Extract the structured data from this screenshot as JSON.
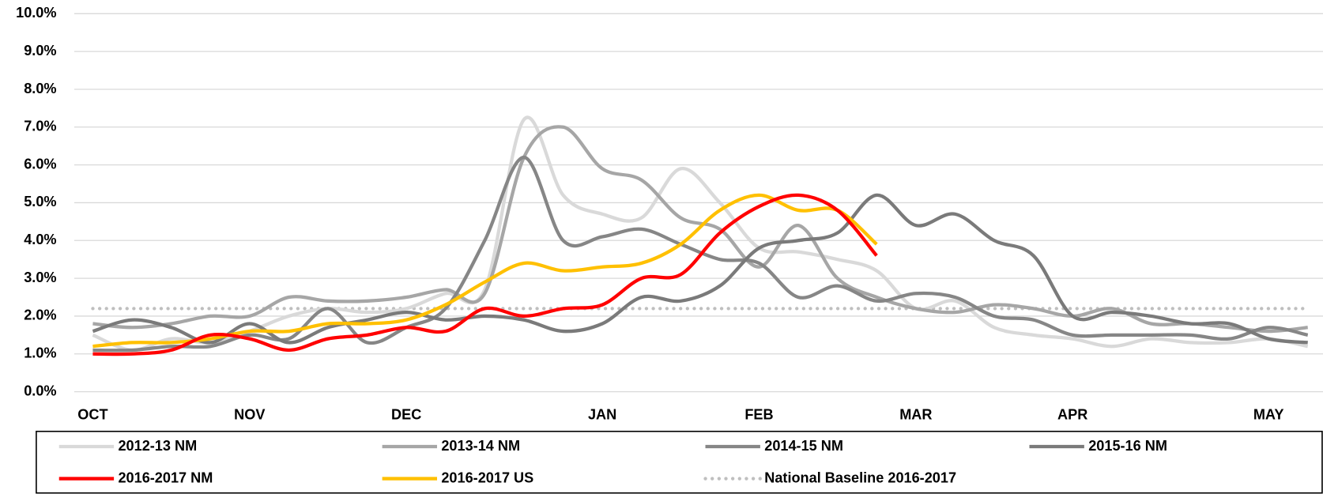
{
  "chart_data": {
    "type": "line",
    "categories": [
      "OCT",
      null,
      null,
      null,
      "NOV",
      null,
      null,
      null,
      "DEC",
      null,
      null,
      null,
      null,
      "JAN",
      null,
      null,
      null,
      "FEB",
      null,
      null,
      null,
      "MAR",
      null,
      null,
      null,
      "APR",
      null,
      null,
      null,
      null,
      "MAY",
      null
    ],
    "ylim": [
      0,
      10
    ],
    "yticks": [
      {
        "value": 0,
        "label": "0.0%"
      },
      {
        "value": 1,
        "label": "1.0%"
      },
      {
        "value": 2,
        "label": "2.0%"
      },
      {
        "value": 3,
        "label": "3.0%"
      },
      {
        "value": 4,
        "label": "4.0%"
      },
      {
        "value": 5,
        "label": "5.0%"
      },
      {
        "value": 6,
        "label": "6.0%"
      },
      {
        "value": 7,
        "label": "7.0%"
      },
      {
        "value": 8,
        "label": "8.0%"
      },
      {
        "value": 9,
        "label": "9.0%"
      },
      {
        "value": 10,
        "label": "10.0%"
      }
    ],
    "grid": true,
    "legend": "bottom",
    "series": [
      {
        "name": "2012-13 NM",
        "color": "#d9d9d9",
        "values": [
          1.5,
          1.1,
          1.4,
          1.3,
          1.6,
          2.0,
          2.2,
          2.1,
          2.2,
          2.6,
          2.7,
          7.2,
          5.2,
          4.7,
          4.6,
          5.9,
          5.0,
          3.8,
          3.7,
          3.5,
          3.2,
          2.2,
          2.4,
          1.7,
          1.5,
          1.4,
          1.2,
          1.4,
          1.3,
          1.3,
          1.4,
          1.2
        ]
      },
      {
        "name": "2013-14 NM",
        "color": "#a6a6a6",
        "values": [
          1.8,
          1.7,
          1.8,
          2.0,
          2.0,
          2.5,
          2.4,
          2.4,
          2.5,
          2.7,
          2.6,
          6.2,
          7.0,
          5.9,
          5.6,
          4.6,
          4.3,
          3.3,
          4.4,
          3.0,
          2.5,
          2.2,
          2.1,
          2.3,
          2.2,
          2.0,
          2.2,
          1.8,
          1.8,
          1.7,
          1.6,
          1.7
        ]
      },
      {
        "name": "2014-15 NM",
        "color": "#868686",
        "values": [
          1.1,
          1.1,
          1.2,
          1.2,
          1.5,
          1.4,
          2.2,
          1.3,
          1.7,
          2.2,
          4.0,
          6.2,
          4.0,
          4.1,
          4.3,
          3.9,
          3.5,
          3.4,
          2.5,
          2.8,
          2.4,
          2.6,
          2.5,
          2.0,
          1.9,
          1.5,
          1.5,
          1.5,
          1.5,
          1.4,
          1.7,
          1.5
        ]
      },
      {
        "name": "2015-16 NM",
        "color": "#7a7a7a",
        "values": [
          1.6,
          1.9,
          1.7,
          1.3,
          1.8,
          1.3,
          1.7,
          1.9,
          2.1,
          1.9,
          2.0,
          1.9,
          1.6,
          1.8,
          2.5,
          2.4,
          2.8,
          3.8,
          4.0,
          4.2,
          5.2,
          4.4,
          4.7,
          4.0,
          3.6,
          2.0,
          2.1,
          2.0,
          1.8,
          1.8,
          1.4,
          1.3
        ]
      },
      {
        "name": "2016-2017 NM",
        "color": "#ff0000",
        "values": [
          1.0,
          1.0,
          1.1,
          1.5,
          1.4,
          1.1,
          1.4,
          1.5,
          1.7,
          1.6,
          2.2,
          2.0,
          2.2,
          2.3,
          3.0,
          3.1,
          4.2,
          4.9,
          5.2,
          4.8,
          3.6,
          null,
          null,
          null,
          null,
          null,
          null,
          null,
          null,
          null,
          null,
          null
        ]
      },
      {
        "name": "2016-2017 US",
        "color": "#ffc000",
        "values": [
          1.2,
          1.3,
          1.3,
          1.4,
          1.6,
          1.6,
          1.8,
          1.8,
          1.9,
          2.3,
          2.9,
          3.4,
          3.2,
          3.3,
          3.4,
          3.9,
          4.8,
          5.2,
          4.8,
          4.8,
          3.9,
          null,
          null,
          null,
          null,
          null,
          null,
          null,
          null,
          null,
          null,
          null
        ]
      },
      {
        "name": "National Baseline 2016-2017",
        "color": "#bfbfbf",
        "dashed": true,
        "values": [
          2.2,
          2.2,
          2.2,
          2.2,
          2.2,
          2.2,
          2.2,
          2.2,
          2.2,
          2.2,
          2.2,
          2.2,
          2.2,
          2.2,
          2.2,
          2.2,
          2.2,
          2.2,
          2.2,
          2.2,
          2.2,
          2.2,
          2.2,
          2.2,
          2.2,
          2.2,
          2.2,
          2.2,
          2.2,
          2.2,
          2.2,
          2.2
        ]
      }
    ]
  }
}
